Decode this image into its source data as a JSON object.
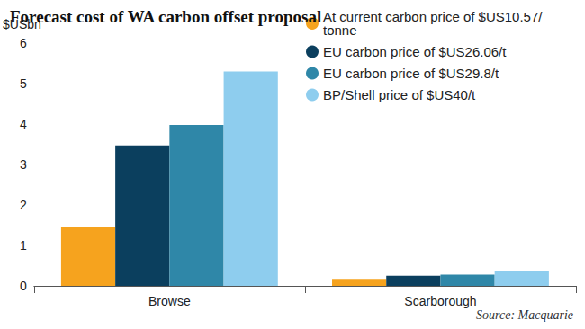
{
  "chart_data": {
    "type": "bar",
    "title": "Forecast cost of WA carbon offset proposal",
    "y_label": "$USbn",
    "source": "Source: Macquarie",
    "categories": [
      "Browse",
      "Scarborough"
    ],
    "series": [
      {
        "name": "At current carbon price of $US10.57/tonne",
        "color": "#f6a31e",
        "values": [
          1.45,
          0.17
        ]
      },
      {
        "name": "EU carbon price of $US26.06/t",
        "color": "#0b3f5e",
        "values": [
          3.47,
          0.25
        ]
      },
      {
        "name": "EU carbon price of $US29.8/t",
        "color": "#2f87a8",
        "values": [
          3.98,
          0.28
        ]
      },
      {
        "name": "BP/Shell price of $US40/t",
        "color": "#8ecdee",
        "values": [
          5.3,
          0.37
        ]
      }
    ],
    "ylim": [
      0,
      6
    ],
    "yticks": [
      0,
      1,
      2,
      3,
      4,
      5,
      6
    ],
    "grid": false,
    "legend": "top-right"
  }
}
